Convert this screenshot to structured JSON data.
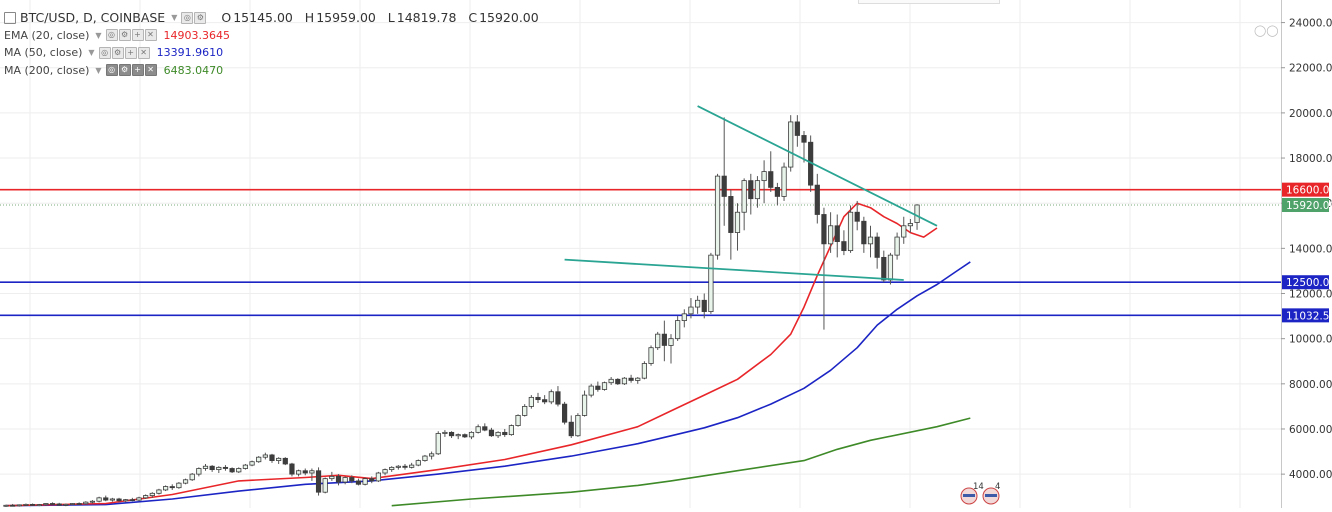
{
  "header": {
    "symbol": "BTC/USD, D, COINBASE",
    "ohlc": [
      {
        "key": "O",
        "value": "15145.00"
      },
      {
        "key": "H",
        "value": "15959.00"
      },
      {
        "key": "L",
        "value": "14819.78"
      },
      {
        "key": "C",
        "value": "15920.00"
      }
    ]
  },
  "indicators": [
    {
      "name": "EMA (20, close)",
      "value": "14903.3645",
      "color": "#e8262a"
    },
    {
      "name": "MA (50, close)",
      "value": "13391.9610",
      "color": "#1c25c4"
    },
    {
      "name": "MA (200, close)",
      "value": "6483.0470",
      "color": "#3e8a28"
    }
  ],
  "chart_data": {
    "type": "candlestick",
    "yaxis_ticks": [
      4000,
      6000,
      8000,
      10000,
      12000,
      14000,
      16000,
      18000,
      20000,
      22000,
      24000
    ],
    "yaxis_tick_labels": [
      "4000.00",
      "6000.00",
      "8000.00",
      "10000.00",
      "12000.00",
      "14000.00",
      "16000.00",
      "18000.00",
      "20000.00",
      "22000.00",
      "24000.00"
    ],
    "ylim": [
      2500,
      25000
    ],
    "grid": true,
    "last_price": 15920,
    "last_price_label": "15920.00",
    "horizontal_levels": [
      {
        "value": 16600,
        "label": "16600.00",
        "color": "#e8262a"
      },
      {
        "value": 12500,
        "label": "12500.00",
        "color": "#1c25c4"
      },
      {
        "value": 11032.56,
        "label": "11032.56",
        "color": "#1c25c4"
      }
    ],
    "trend_lines": [
      {
        "color": "#2aa493",
        "points": [
          [
            96,
            20300
          ],
          [
            105,
            15000
          ]
        ]
      },
      {
        "color": "#2aa493",
        "points": [
          [
            76,
            13500
          ],
          [
            100,
            12600
          ]
        ]
      }
    ],
    "candles": [
      [
        2600,
        2650,
        2550,
        2620
      ],
      [
        2620,
        2680,
        2580,
        2600
      ],
      [
        2600,
        2660,
        2560,
        2640
      ],
      [
        2640,
        2700,
        2600,
        2660
      ],
      [
        2660,
        2700,
        2600,
        2630
      ],
      [
        2630,
        2680,
        2580,
        2650
      ],
      [
        2650,
        2720,
        2600,
        2700
      ],
      [
        2700,
        2750,
        2650,
        2680
      ],
      [
        2680,
        2730,
        2600,
        2620
      ],
      [
        2620,
        2700,
        2580,
        2660
      ],
      [
        2660,
        2720,
        2620,
        2700
      ],
      [
        2700,
        2750,
        2650,
        2690
      ],
      [
        2690,
        2800,
        2650,
        2760
      ],
      [
        2760,
        2850,
        2700,
        2800
      ],
      [
        2800,
        3000,
        2750,
        2950
      ],
      [
        2950,
        3050,
        2800,
        2850
      ],
      [
        2850,
        2950,
        2780,
        2900
      ],
      [
        2900,
        2950,
        2780,
        2820
      ],
      [
        2820,
        2900,
        2750,
        2870
      ],
      [
        2870,
        2950,
        2800,
        2850
      ],
      [
        2850,
        3000,
        2800,
        2950
      ],
      [
        2950,
        3100,
        2900,
        3050
      ],
      [
        3050,
        3200,
        2950,
        3150
      ],
      [
        3150,
        3350,
        3100,
        3300
      ],
      [
        3300,
        3500,
        3250,
        3450
      ],
      [
        3450,
        3550,
        3300,
        3400
      ],
      [
        3400,
        3650,
        3350,
        3600
      ],
      [
        3600,
        3800,
        3550,
        3750
      ],
      [
        3750,
        4050,
        3700,
        4000
      ],
      [
        4000,
        4300,
        3900,
        4250
      ],
      [
        4250,
        4450,
        4150,
        4350
      ],
      [
        4350,
        4400,
        4100,
        4200
      ],
      [
        4200,
        4350,
        4050,
        4300
      ],
      [
        4300,
        4400,
        4150,
        4250
      ],
      [
        4250,
        4300,
        4050,
        4100
      ],
      [
        4100,
        4300,
        4050,
        4250
      ],
      [
        4250,
        4450,
        4200,
        4400
      ],
      [
        4400,
        4600,
        4350,
        4550
      ],
      [
        4550,
        4800,
        4500,
        4750
      ],
      [
        4750,
        4950,
        4650,
        4850
      ],
      [
        4850,
        4900,
        4500,
        4600
      ],
      [
        4600,
        4750,
        4450,
        4700
      ],
      [
        4700,
        4750,
        4400,
        4450
      ],
      [
        4450,
        4500,
        3900,
        4000
      ],
      [
        4000,
        4200,
        3900,
        4150
      ],
      [
        4150,
        4250,
        3950,
        4050
      ],
      [
        4050,
        4250,
        3700,
        4150
      ],
      [
        4150,
        4300,
        3050,
        3200
      ],
      [
        3200,
        3850,
        3150,
        3800
      ],
      [
        3800,
        4100,
        3700,
        3900
      ],
      [
        3900,
        4000,
        3500,
        3650
      ],
      [
        3650,
        3900,
        3550,
        3850
      ],
      [
        3850,
        3950,
        3600,
        3700
      ],
      [
        3700,
        3800,
        3500,
        3550
      ],
      [
        3550,
        3850,
        3500,
        3800
      ],
      [
        3800,
        3900,
        3600,
        3700
      ],
      [
        3700,
        4100,
        3650,
        4050
      ],
      [
        4050,
        4250,
        3950,
        4200
      ],
      [
        4200,
        4350,
        4100,
        4300
      ],
      [
        4300,
        4400,
        4200,
        4350
      ],
      [
        4350,
        4450,
        4200,
        4300
      ],
      [
        4300,
        4500,
        4250,
        4400
      ],
      [
        4400,
        4650,
        4350,
        4600
      ],
      [
        4600,
        4850,
        4550,
        4800
      ],
      [
        4800,
        5000,
        4650,
        4900
      ],
      [
        4900,
        5900,
        4850,
        5800
      ],
      [
        5800,
        5950,
        5650,
        5850
      ],
      [
        5850,
        5900,
        5600,
        5700
      ],
      [
        5700,
        5800,
        5550,
        5750
      ],
      [
        5750,
        5800,
        5600,
        5650
      ],
      [
        5650,
        5900,
        5550,
        5850
      ],
      [
        5850,
        6200,
        5800,
        6100
      ],
      [
        6100,
        6250,
        5900,
        5950
      ],
      [
        5950,
        6050,
        5650,
        5700
      ],
      [
        5700,
        5900,
        5600,
        5850
      ],
      [
        5850,
        6000,
        5650,
        5750
      ],
      [
        5750,
        6200,
        5700,
        6150
      ],
      [
        6150,
        6650,
        6100,
        6600
      ],
      [
        6600,
        7100,
        6550,
        7000
      ],
      [
        7000,
        7500,
        6900,
        7400
      ],
      [
        7400,
        7600,
        7150,
        7300
      ],
      [
        7300,
        7500,
        7100,
        7200
      ],
      [
        7200,
        7750,
        7100,
        7650
      ],
      [
        7650,
        7900,
        7000,
        7100
      ],
      [
        7100,
        7200,
        6200,
        6300
      ],
      [
        6300,
        6600,
        5600,
        5700
      ],
      [
        5700,
        6700,
        5650,
        6600
      ],
      [
        6600,
        7700,
        6550,
        7500
      ],
      [
        7500,
        8000,
        7400,
        7900
      ],
      [
        7900,
        8100,
        7650,
        7750
      ],
      [
        7750,
        8100,
        7700,
        8050
      ],
      [
        8050,
        8300,
        7950,
        8200
      ],
      [
        8200,
        8250,
        7950,
        8000
      ],
      [
        8000,
        8300,
        7950,
        8250
      ],
      [
        8250,
        8400,
        8050,
        8150
      ],
      [
        8150,
        8300,
        8000,
        8250
      ],
      [
        8250,
        9000,
        8200,
        8900
      ],
      [
        8900,
        9700,
        8800,
        9600
      ],
      [
        9600,
        10300,
        9500,
        10200
      ],
      [
        10200,
        10800,
        9000,
        9700
      ],
      [
        9700,
        10200,
        8900,
        10000
      ],
      [
        10000,
        11000,
        9900,
        10800
      ],
      [
        10800,
        11300,
        10500,
        11100
      ],
      [
        11100,
        11800,
        10900,
        11400
      ],
      [
        11400,
        11900,
        11100,
        11700
      ],
      [
        11700,
        12000,
        10900,
        11200
      ],
      [
        11200,
        13800,
        11100,
        13700
      ],
      [
        13700,
        17300,
        13500,
        17200
      ],
      [
        17200,
        19800,
        15000,
        16300
      ],
      [
        16300,
        16600,
        13500,
        14700
      ],
      [
        14700,
        16000,
        13900,
        15600
      ],
      [
        15600,
        17100,
        14800,
        17000
      ],
      [
        17000,
        17300,
        15500,
        16200
      ],
      [
        16200,
        17200,
        15800,
        17000
      ],
      [
        17000,
        17900,
        16000,
        17400
      ],
      [
        17400,
        18300,
        16500,
        16700
      ],
      [
        16700,
        16900,
        15900,
        16300
      ],
      [
        16300,
        17800,
        16100,
        17600
      ],
      [
        17600,
        19900,
        17400,
        19600
      ],
      [
        19600,
        19900,
        18500,
        19000
      ],
      [
        19000,
        19200,
        17800,
        18700
      ],
      [
        18700,
        19000,
        16500,
        16800
      ],
      [
        16800,
        17300,
        15100,
        15500
      ],
      [
        15500,
        15800,
        10400,
        14200
      ],
      [
        14200,
        15600,
        13800,
        15000
      ],
      [
        15000,
        15500,
        13600,
        14300
      ],
      [
        14300,
        14800,
        13700,
        13900
      ],
      [
        13900,
        15900,
        13800,
        15600
      ],
      [
        15600,
        16100,
        14800,
        15200
      ],
      [
        15200,
        15400,
        13800,
        14200
      ],
      [
        14200,
        15000,
        13600,
        14500
      ],
      [
        14500,
        14700,
        13100,
        13600
      ],
      [
        13600,
        13900,
        12500,
        12600
      ],
      [
        12600,
        13800,
        12400,
        13700
      ],
      [
        13700,
        14700,
        13500,
        14500
      ],
      [
        14500,
        15400,
        14200,
        15000
      ],
      [
        15000,
        15300,
        14700,
        15100
      ],
      [
        15145,
        15959,
        14820,
        15920
      ]
    ],
    "ema20": [
      [
        0,
        2600
      ],
      [
        15,
        2700
      ],
      [
        25,
        3100
      ],
      [
        35,
        3700
      ],
      [
        45,
        3850
      ],
      [
        50,
        3950
      ],
      [
        55,
        3800
      ],
      [
        65,
        4200
      ],
      [
        75,
        4650
      ],
      [
        85,
        5300
      ],
      [
        95,
        6100
      ],
      [
        100,
        6800
      ],
      [
        105,
        7500
      ],
      [
        110,
        8200
      ],
      [
        115,
        9300
      ],
      [
        118,
        10200
      ],
      [
        120,
        11400
      ],
      [
        122,
        12800
      ],
      [
        124,
        14100
      ],
      [
        126,
        15400
      ],
      [
        128,
        16000
      ],
      [
        130,
        15800
      ],
      [
        132,
        15400
      ],
      [
        134,
        15100
      ],
      [
        136,
        14700
      ],
      [
        138,
        14500
      ],
      [
        140,
        14900
      ]
    ],
    "ma50": [
      [
        0,
        2600
      ],
      [
        15,
        2650
      ],
      [
        25,
        2900
      ],
      [
        35,
        3250
      ],
      [
        45,
        3550
      ],
      [
        55,
        3700
      ],
      [
        65,
        4000
      ],
      [
        75,
        4350
      ],
      [
        85,
        4800
      ],
      [
        95,
        5350
      ],
      [
        100,
        5700
      ],
      [
        105,
        6050
      ],
      [
        110,
        6500
      ],
      [
        115,
        7100
      ],
      [
        120,
        7800
      ],
      [
        124,
        8600
      ],
      [
        128,
        9600
      ],
      [
        131,
        10600
      ],
      [
        134,
        11300
      ],
      [
        137,
        11900
      ],
      [
        140,
        12400
      ],
      [
        143,
        13000
      ],
      [
        145,
        13400
      ]
    ],
    "ma200": [
      [
        58,
        2600
      ],
      [
        70,
        2900
      ],
      [
        85,
        3200
      ],
      [
        95,
        3500
      ],
      [
        100,
        3700
      ],
      [
        110,
        4150
      ],
      [
        120,
        4600
      ],
      [
        125,
        5100
      ],
      [
        130,
        5500
      ],
      [
        140,
        6100
      ],
      [
        145,
        6480
      ]
    ],
    "event_markers": [
      {
        "label": "14"
      },
      {
        "label": "4"
      }
    ]
  }
}
